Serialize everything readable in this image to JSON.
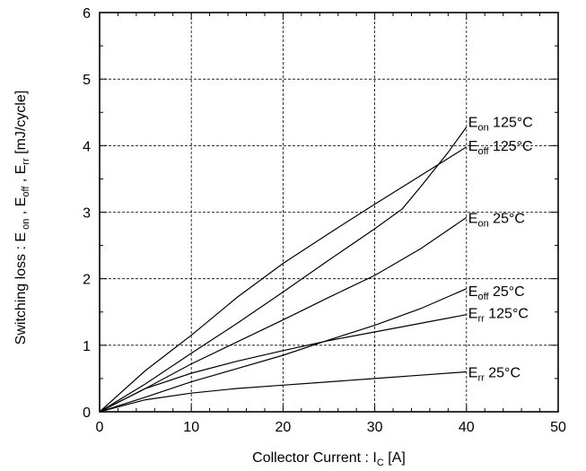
{
  "chart_data": {
    "type": "line",
    "xlabel": {
      "main": "Collector Current : I",
      "sub": "C",
      "unit": " [A]"
    },
    "ylabel": {
      "parts": [
        {
          "t": "Switching loss : E",
          "sub": false
        },
        {
          "t": " on",
          "sub": true
        },
        {
          "t": " , E",
          "sub": false
        },
        {
          "t": "off",
          "sub": true
        },
        {
          "t": " , E",
          "sub": false
        },
        {
          "t": "rr",
          "sub": true
        },
        {
          "t": " [mJ/cycle]",
          "sub": false
        }
      ]
    },
    "xlim": [
      0,
      50
    ],
    "ylim": [
      0,
      6
    ],
    "x_ticks": [
      "0",
      "10",
      "20",
      "30",
      "40",
      "50"
    ],
    "y_ticks": [
      "0",
      "1",
      "2",
      "3",
      "4",
      "5",
      "6"
    ],
    "grid": true,
    "series": [
      {
        "name": "Eon 125°C",
        "label_main": "E",
        "label_sub": "on",
        "label_rest": " 125°C",
        "x": [
          0,
          5,
          10,
          15,
          20,
          25,
          30,
          33,
          35,
          38,
          40
        ],
        "y": [
          0,
          0.42,
          0.88,
          1.33,
          1.8,
          2.28,
          2.75,
          3.05,
          3.38,
          3.9,
          4.28
        ]
      },
      {
        "name": "Eoff 125°C",
        "label_main": "E",
        "label_sub": "off",
        "label_rest": " 125°C",
        "x": [
          0,
          5,
          10,
          15,
          20,
          25,
          30,
          35,
          40
        ],
        "y": [
          0,
          0.62,
          1.15,
          1.72,
          2.23,
          2.68,
          3.12,
          3.55,
          3.98
        ]
      },
      {
        "name": "Eon 25°C",
        "label_main": "E",
        "label_sub": "on",
        "label_rest": " 25°C",
        "x": [
          0,
          5,
          10,
          15,
          20,
          25,
          30,
          35,
          40
        ],
        "y": [
          0,
          0.35,
          0.72,
          1.05,
          1.38,
          1.72,
          2.05,
          2.45,
          2.92
        ]
      },
      {
        "name": "Eoff 25°C",
        "label_main": "E",
        "label_sub": "off",
        "label_rest": " 25°C",
        "x": [
          0,
          5,
          10,
          15,
          20,
          25,
          30,
          35,
          40
        ],
        "y": [
          0,
          0.22,
          0.45,
          0.65,
          0.85,
          1.08,
          1.3,
          1.55,
          1.85
        ]
      },
      {
        "name": "Err 125°C",
        "label_main": "E",
        "label_sub": "rr",
        "label_rest": " 125°C",
        "x": [
          0,
          5,
          10,
          15,
          20,
          25,
          30,
          35,
          40
        ],
        "y": [
          0,
          0.35,
          0.58,
          0.76,
          0.92,
          1.07,
          1.2,
          1.33,
          1.46
        ]
      },
      {
        "name": "Err 25°C",
        "label_main": "E",
        "label_sub": "rr",
        "label_rest": " 25°C",
        "x": [
          0,
          5,
          10,
          15,
          20,
          25,
          30,
          35,
          40
        ],
        "y": [
          0,
          0.18,
          0.28,
          0.35,
          0.4,
          0.45,
          0.5,
          0.55,
          0.6
        ]
      }
    ]
  }
}
